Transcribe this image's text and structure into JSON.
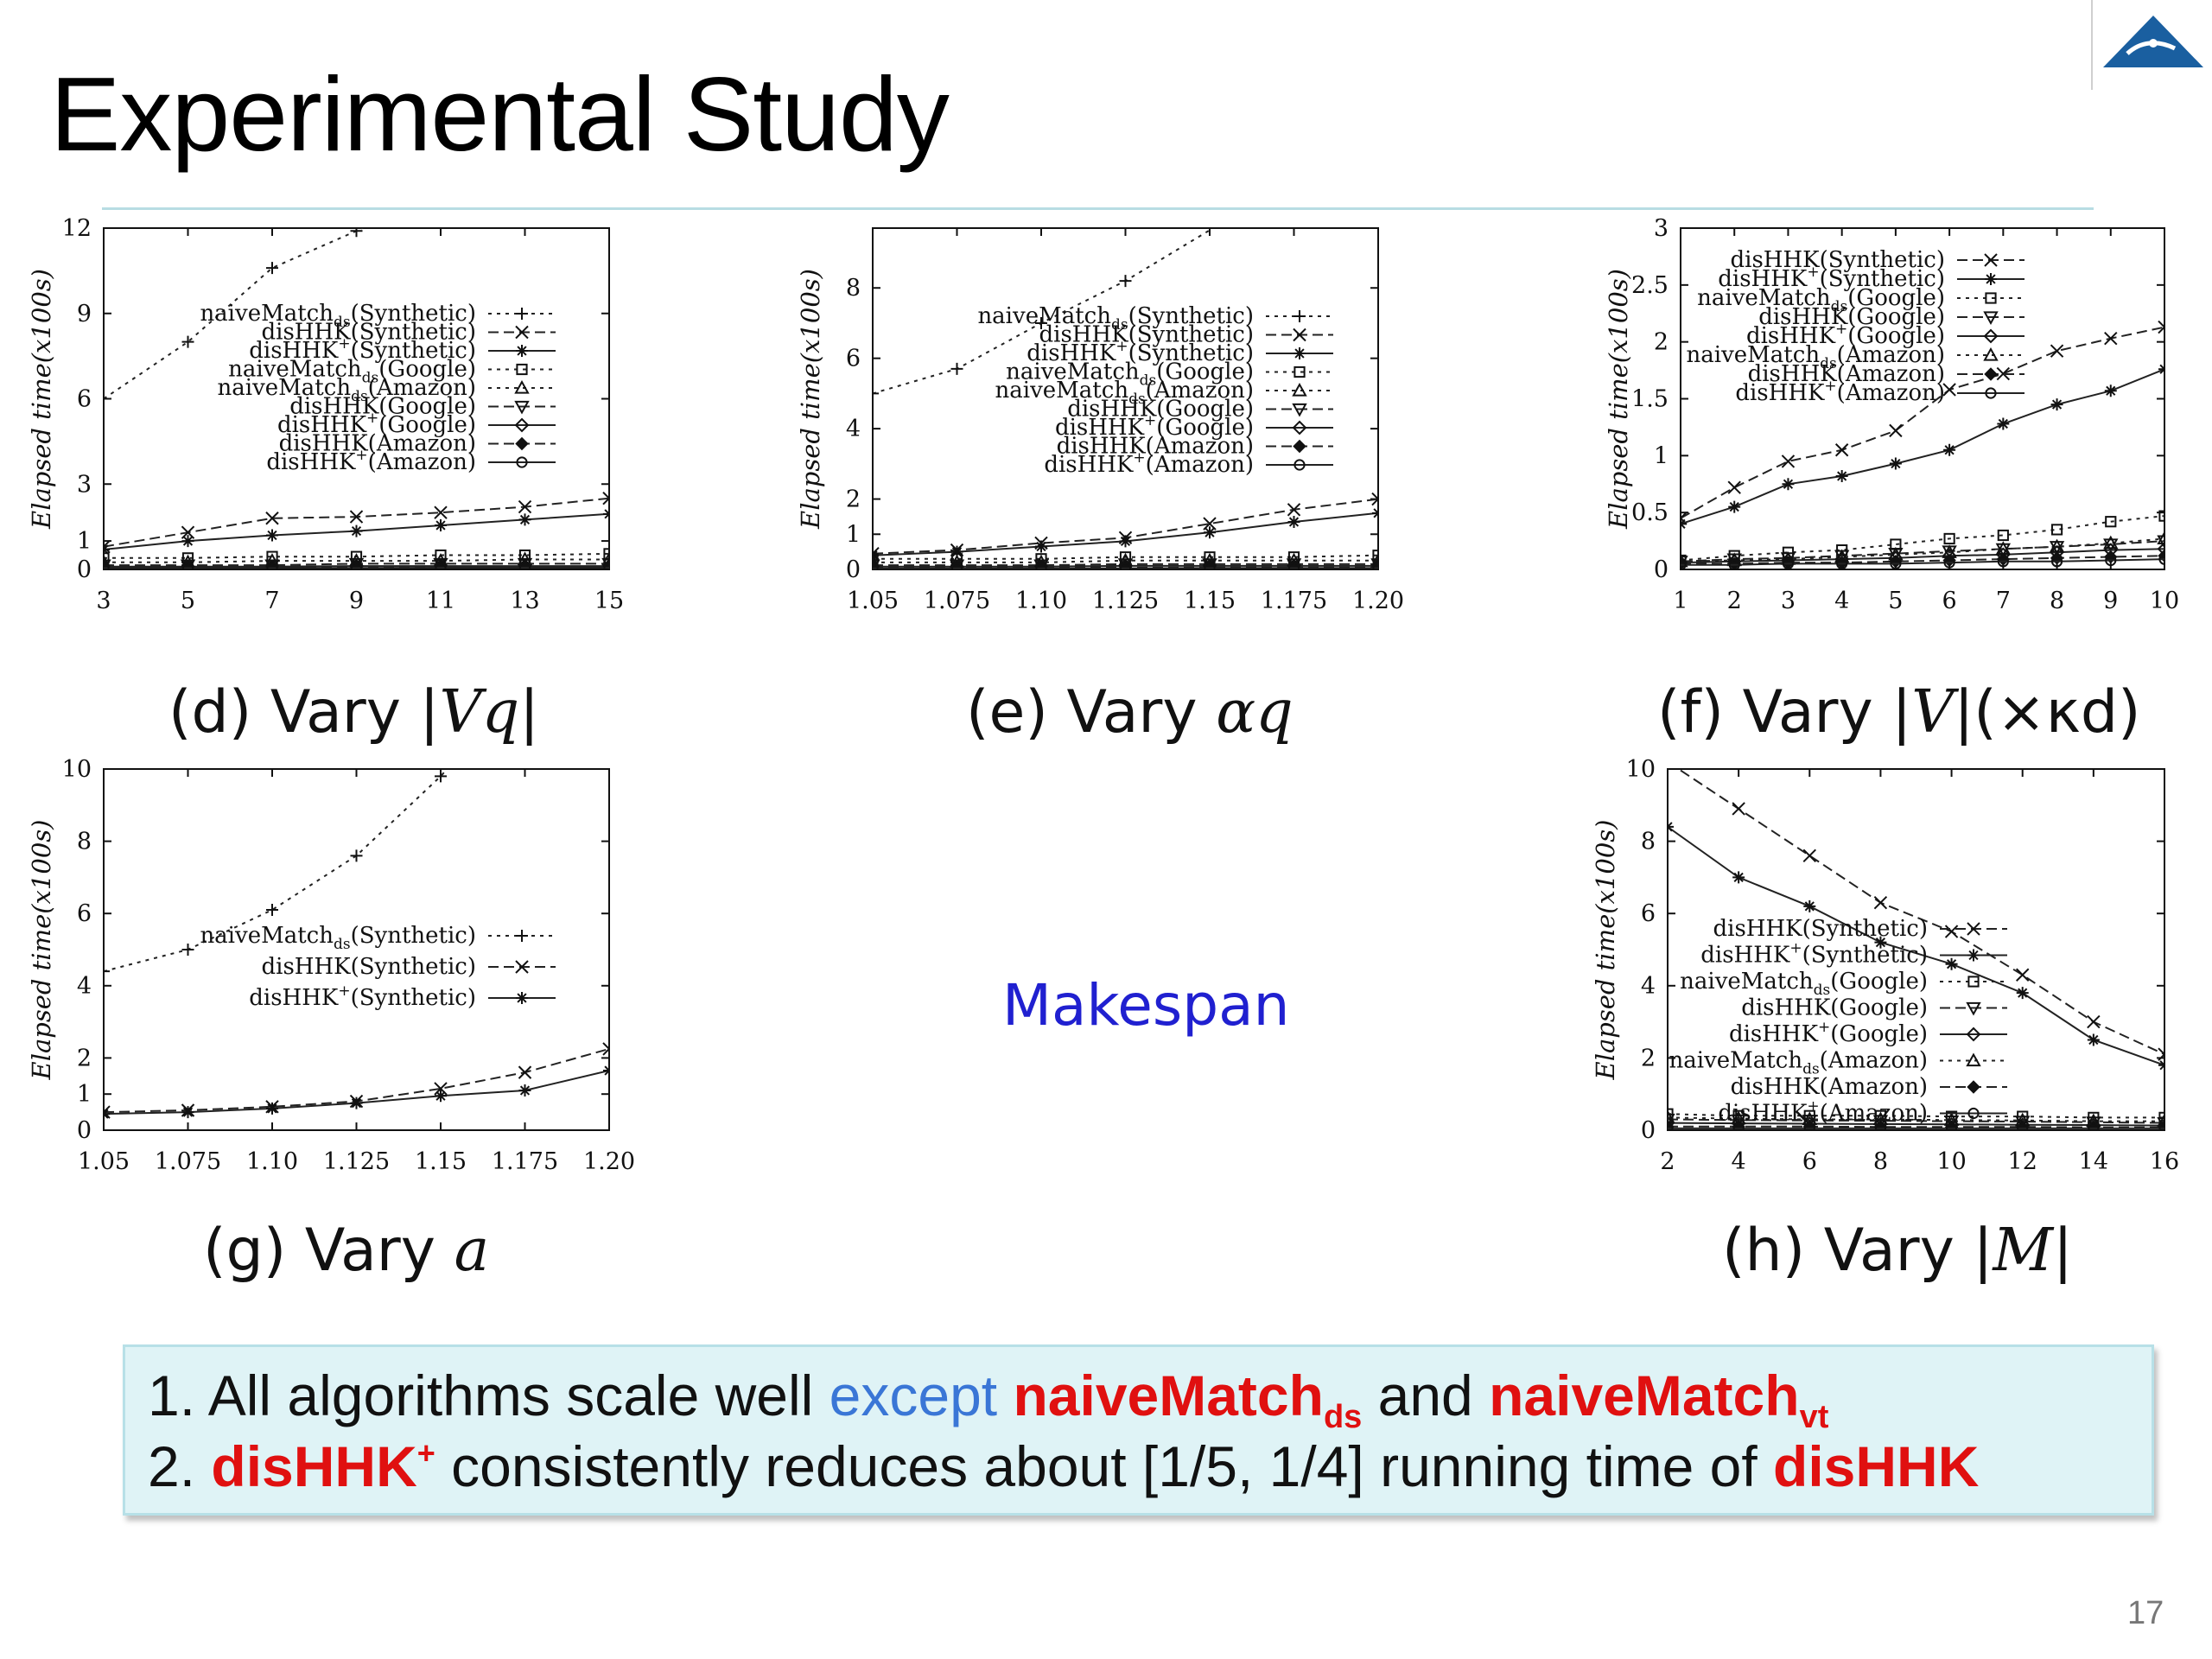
{
  "slide": {
    "title": "Experimental Study",
    "page_number": "17",
    "center_label": "Makespan"
  },
  "captions": {
    "d": {
      "prefix": "(d) Vary |",
      "math": "Vq",
      "suffix": "|"
    },
    "e": {
      "prefix": "(e) Vary ",
      "math": "αq",
      "suffix": ""
    },
    "f": {
      "prefix": "(f) Vary |",
      "math": "V",
      "suffix": "|(×κd)"
    },
    "g": {
      "prefix": "(g) Vary ",
      "math": "a",
      "suffix": ""
    },
    "h": {
      "prefix": "(h) Vary |",
      "math": "M",
      "suffix": "|"
    }
  },
  "summary": {
    "line1": {
      "num": "1. All algorithms scale well ",
      "except": "except",
      "name1": "naiveMatch",
      "sub1": "ds",
      "and": " and ",
      "name2": "naiveMatch",
      "sub2": "vt"
    },
    "line2": {
      "num": "2. ",
      "name1": "disHHK",
      "sup1": "+",
      "middle": " consistently reduces about [1/5, 1/4] running time of ",
      "name2": "disHHK"
    }
  },
  "chart_data": [
    {
      "id": "d",
      "type": "line",
      "xlabel": "",
      "ylabel": "Elapsed time(x100s)",
      "x": [
        3,
        5,
        7,
        9,
        11,
        13,
        15
      ],
      "xticks": [
        "3",
        "5",
        "7",
        "9",
        "11",
        "13",
        "15"
      ],
      "yticks": [
        0,
        1,
        3,
        6,
        9,
        12
      ],
      "ylim": [
        0,
        12
      ],
      "legend_position": "top-right",
      "series": [
        {
          "name": "naiveMatchds(Synthetic)",
          "base": "naiveMatch",
          "sub": "ds",
          "sup": "",
          "tail": "(Synthetic)",
          "style": "dotted",
          "marker": "plus",
          "values": [
            6.0,
            8.0,
            10.6,
            11.9,
            null,
            null,
            null
          ]
        },
        {
          "name": "disHHK(Synthetic)",
          "base": "disHHK",
          "sub": "",
          "sup": "",
          "tail": "(Synthetic)",
          "style": "dashed",
          "marker": "x",
          "values": [
            0.8,
            1.3,
            1.8,
            1.85,
            2.0,
            2.2,
            2.5
          ]
        },
        {
          "name": "disHHK+(Synthetic)",
          "base": "disHHK",
          "sub": "",
          "sup": "+",
          "tail": "(Synthetic)",
          "style": "solid",
          "marker": "asterisk",
          "values": [
            0.7,
            1.0,
            1.2,
            1.35,
            1.55,
            1.75,
            1.95
          ]
        },
        {
          "name": "naiveMatchds(Google)",
          "base": "naiveMatch",
          "sub": "ds",
          "sup": "",
          "tail": "(Google)",
          "style": "dotted",
          "marker": "square",
          "values": [
            0.4,
            0.4,
            0.45,
            0.45,
            0.5,
            0.5,
            0.55
          ]
        },
        {
          "name": "naiveMatchds(Amazon)",
          "base": "naiveMatch",
          "sub": "ds",
          "sup": "",
          "tail": "(Amazon)",
          "style": "dotted",
          "marker": "triangle",
          "values": [
            0.25,
            0.25,
            0.3,
            0.3,
            0.3,
            0.35,
            0.35
          ]
        },
        {
          "name": "disHHK(Google)",
          "base": "disHHK",
          "sub": "",
          "sup": "",
          "tail": "(Google)",
          "style": "dashed",
          "marker": "triangle-down",
          "values": [
            0.15,
            0.15,
            0.15,
            0.2,
            0.2,
            0.2,
            0.2
          ]
        },
        {
          "name": "disHHK+(Google)",
          "base": "disHHK",
          "sub": "",
          "sup": "+",
          "tail": "(Google)",
          "style": "solid",
          "marker": "diamond",
          "values": [
            0.1,
            0.1,
            0.1,
            0.12,
            0.12,
            0.12,
            0.12
          ]
        },
        {
          "name": "disHHK(Amazon)",
          "base": "disHHK",
          "sub": "",
          "sup": "",
          "tail": "(Amazon)",
          "style": "dashed",
          "marker": "filled-diamond",
          "values": [
            0.08,
            0.08,
            0.08,
            0.08,
            0.1,
            0.1,
            0.1
          ]
        },
        {
          "name": "disHHK+(Amazon)",
          "base": "disHHK",
          "sub": "",
          "sup": "+",
          "tail": "(Amazon)",
          "style": "solid",
          "marker": "circle",
          "values": [
            0.05,
            0.05,
            0.05,
            0.05,
            0.06,
            0.06,
            0.06
          ]
        }
      ]
    },
    {
      "id": "e",
      "type": "line",
      "xlabel": "",
      "ylabel": "Elapsed time(x100s)",
      "x": [
        1.05,
        1.075,
        1.1,
        1.125,
        1.15,
        1.175,
        1.2
      ],
      "xticks": [
        "1.05",
        "1.075",
        "1.10",
        "1.125",
        "1.15",
        "1.175",
        "1.20"
      ],
      "yticks": [
        0,
        1,
        2,
        4,
        6,
        8
      ],
      "ylim": [
        0,
        9.7
      ],
      "legend_position": "top-right",
      "series": [
        {
          "name": "naiveMatchds(Synthetic)",
          "base": "naiveMatch",
          "sub": "ds",
          "sup": "",
          "tail": "(Synthetic)",
          "style": "dotted",
          "marker": "plus",
          "values": [
            5.0,
            5.7,
            7.0,
            8.2,
            null,
            null,
            null
          ]
        },
        {
          "name": "disHHK(Synthetic)",
          "base": "disHHK",
          "sub": "",
          "sup": "",
          "tail": "(Synthetic)",
          "style": "dashed",
          "marker": "x",
          "values": [
            0.45,
            0.55,
            0.75,
            0.9,
            1.3,
            1.7,
            2.0
          ]
        },
        {
          "name": "disHHK+(Synthetic)",
          "base": "disHHK",
          "sub": "",
          "sup": "+",
          "tail": "(Synthetic)",
          "style": "solid",
          "marker": "asterisk",
          "values": [
            0.4,
            0.5,
            0.65,
            0.8,
            1.05,
            1.35,
            1.6
          ]
        },
        {
          "name": "naiveMatchds(Google)",
          "base": "naiveMatch",
          "sub": "ds",
          "sup": "",
          "tail": "(Google)",
          "style": "dotted",
          "marker": "square",
          "values": [
            0.3,
            0.3,
            0.3,
            0.35,
            0.35,
            0.35,
            0.4
          ]
        },
        {
          "name": "naiveMatchds(Amazon)",
          "base": "naiveMatch",
          "sub": "ds",
          "sup": "",
          "tail": "(Amazon)",
          "style": "dotted",
          "marker": "triangle",
          "values": [
            0.2,
            0.2,
            0.2,
            0.25,
            0.25,
            0.25,
            0.25
          ]
        },
        {
          "name": "disHHK(Google)",
          "base": "disHHK",
          "sub": "",
          "sup": "",
          "tail": "(Google)",
          "style": "dashed",
          "marker": "triangle-down",
          "values": [
            0.12,
            0.12,
            0.12,
            0.15,
            0.15,
            0.15,
            0.15
          ]
        },
        {
          "name": "disHHK+(Google)",
          "base": "disHHK",
          "sub": "",
          "sup": "+",
          "tail": "(Google)",
          "style": "solid",
          "marker": "diamond",
          "values": [
            0.08,
            0.08,
            0.08,
            0.1,
            0.1,
            0.1,
            0.1
          ]
        },
        {
          "name": "disHHK(Amazon)",
          "base": "disHHK",
          "sub": "",
          "sup": "",
          "tail": "(Amazon)",
          "style": "dashed",
          "marker": "filled-diamond",
          "values": [
            0.05,
            0.05,
            0.05,
            0.05,
            0.06,
            0.06,
            0.06
          ]
        },
        {
          "name": "disHHK+(Amazon)",
          "base": "disHHK",
          "sub": "",
          "sup": "+",
          "tail": "(Amazon)",
          "style": "solid",
          "marker": "circle",
          "values": [
            0.03,
            0.03,
            0.03,
            0.03,
            0.04,
            0.04,
            0.04
          ]
        }
      ]
    },
    {
      "id": "f",
      "type": "line",
      "xlabel": "",
      "ylabel": "Elapsed time(x100s)",
      "x": [
        1,
        2,
        3,
        4,
        5,
        6,
        7,
        8,
        9,
        10
      ],
      "xticks": [
        "1",
        "2",
        "3",
        "4",
        "5",
        "6",
        "7",
        "8",
        "9",
        "10"
      ],
      "yticks": [
        0,
        0.5,
        1,
        1.5,
        2,
        2.5,
        3
      ],
      "ytick_labels": [
        "0",
        "0.5",
        "1",
        "1.5",
        "2",
        "2.5",
        "3"
      ],
      "ylim": [
        0,
        3
      ],
      "legend_position": "top-left",
      "series": [
        {
          "name": "disHHK(Synthetic)",
          "base": "disHHK",
          "sub": "",
          "sup": "",
          "tail": "(Synthetic)",
          "style": "dashed",
          "marker": "x",
          "values": [
            0.45,
            0.72,
            0.95,
            1.05,
            1.22,
            1.58,
            1.72,
            1.92,
            2.03,
            2.13
          ]
        },
        {
          "name": "disHHK+(Synthetic)",
          "base": "disHHK",
          "sub": "",
          "sup": "+",
          "tail": "(Synthetic)",
          "style": "solid",
          "marker": "asterisk",
          "values": [
            0.4,
            0.55,
            0.75,
            0.82,
            0.93,
            1.05,
            1.28,
            1.45,
            1.57,
            1.76
          ]
        },
        {
          "name": "naiveMatchds(Google)",
          "base": "naiveMatch",
          "sub": "ds",
          "sup": "",
          "tail": "(Google)",
          "style": "dotted",
          "marker": "square",
          "values": [
            0.08,
            0.12,
            0.15,
            0.17,
            0.22,
            0.27,
            0.3,
            0.35,
            0.42,
            0.47
          ]
        },
        {
          "name": "disHHK(Google)",
          "base": "disHHK",
          "sub": "",
          "sup": "",
          "tail": "(Google)",
          "style": "dashed",
          "marker": "triangle-down",
          "values": [
            0.07,
            0.09,
            0.1,
            0.12,
            0.14,
            0.16,
            0.18,
            0.2,
            0.22,
            0.25
          ]
        },
        {
          "name": "disHHK+(Google)",
          "base": "disHHK",
          "sub": "",
          "sup": "+",
          "tail": "(Google)",
          "style": "solid",
          "marker": "diamond",
          "values": [
            0.06,
            0.07,
            0.08,
            0.09,
            0.1,
            0.12,
            0.13,
            0.15,
            0.17,
            0.18
          ]
        },
        {
          "name": "naiveMatchds(Amazon)",
          "base": "naiveMatch",
          "sub": "ds",
          "sup": "",
          "tail": "(Amazon)",
          "style": "dotted",
          "marker": "triangle",
          "values": [
            0.07,
            0.08,
            0.09,
            0.11,
            0.13,
            0.15,
            0.18,
            0.2,
            0.23,
            0.27
          ]
        },
        {
          "name": "disHHK(Amazon)",
          "base": "disHHK",
          "sub": "",
          "sup": "",
          "tail": "(Amazon)",
          "style": "dashed",
          "marker": "filled-diamond",
          "values": [
            0.05,
            0.05,
            0.06,
            0.06,
            0.07,
            0.08,
            0.09,
            0.1,
            0.11,
            0.12
          ]
        },
        {
          "name": "disHHK+(Amazon)",
          "base": "disHHK",
          "sub": "",
          "sup": "+",
          "tail": "(Amazon)",
          "style": "solid",
          "marker": "circle",
          "values": [
            0.04,
            0.04,
            0.05,
            0.05,
            0.05,
            0.06,
            0.07,
            0.07,
            0.08,
            0.09
          ]
        }
      ]
    },
    {
      "id": "g",
      "type": "line",
      "xlabel": "",
      "ylabel": "Elapsed time(x100s)",
      "x": [
        1.05,
        1.075,
        1.1,
        1.125,
        1.15,
        1.175,
        1.2
      ],
      "xticks": [
        "1.05",
        "1.075",
        "1.10",
        "1.125",
        "1.15",
        "1.175",
        "1.20"
      ],
      "yticks": [
        0,
        1,
        2,
        4,
        6,
        8,
        10
      ],
      "ylim": [
        0,
        10
      ],
      "legend_position": "center-right",
      "series": [
        {
          "name": "naiveMatchds(Synthetic)",
          "base": "naiveMatch",
          "sub": "ds",
          "sup": "",
          "tail": "(Synthetic)",
          "style": "dotted",
          "marker": "plus",
          "values": [
            4.4,
            5.0,
            6.1,
            7.6,
            9.8,
            null,
            null
          ]
        },
        {
          "name": "disHHK(Synthetic)",
          "base": "disHHK",
          "sub": "",
          "sup": "",
          "tail": "(Synthetic)",
          "style": "dashed",
          "marker": "x",
          "values": [
            0.5,
            0.55,
            0.65,
            0.8,
            1.15,
            1.6,
            2.25
          ]
        },
        {
          "name": "disHHK+(Synthetic)",
          "base": "disHHK",
          "sub": "",
          "sup": "+",
          "tail": "(Synthetic)",
          "style": "solid",
          "marker": "asterisk",
          "values": [
            0.45,
            0.5,
            0.6,
            0.75,
            0.95,
            1.1,
            1.65
          ]
        }
      ]
    },
    {
      "id": "h",
      "type": "line",
      "xlabel": "",
      "ylabel": "Elapsed time(x100s)",
      "x": [
        2,
        4,
        6,
        8,
        10,
        12,
        14,
        16
      ],
      "xticks": [
        "2",
        "4",
        "6",
        "8",
        "10",
        "12",
        "14",
        "16"
      ],
      "yticks": [
        0,
        2,
        4,
        6,
        8,
        10
      ],
      "ylim": [
        0,
        10
      ],
      "legend_position": "center-right",
      "series": [
        {
          "name": "disHHK(Synthetic)",
          "base": "disHHK",
          "sub": "",
          "sup": "",
          "tail": "(Synthetic)",
          "style": "dashed",
          "marker": "x",
          "values": [
            10.2,
            8.9,
            7.6,
            6.3,
            5.5,
            4.3,
            3.0,
            2.1
          ]
        },
        {
          "name": "disHHK+(Synthetic)",
          "base": "disHHK",
          "sub": "",
          "sup": "+",
          "tail": "(Synthetic)",
          "style": "solid",
          "marker": "asterisk",
          "values": [
            8.4,
            7.0,
            6.2,
            5.2,
            4.6,
            3.8,
            2.5,
            1.8
          ]
        },
        {
          "name": "naiveMatchds(Google)",
          "base": "naiveMatch",
          "sub": "ds",
          "sup": "",
          "tail": "(Google)",
          "style": "dotted",
          "marker": "square",
          "values": [
            0.45,
            0.4,
            0.4,
            0.4,
            0.38,
            0.38,
            0.35,
            0.35
          ]
        },
        {
          "name": "disHHK(Google)",
          "base": "disHHK",
          "sub": "",
          "sup": "",
          "tail": "(Google)",
          "style": "dashed",
          "marker": "triangle-down",
          "values": [
            0.3,
            0.28,
            0.27,
            0.26,
            0.25,
            0.24,
            0.22,
            0.2
          ]
        },
        {
          "name": "disHHK+(Google)",
          "base": "disHHK",
          "sub": "",
          "sup": "+",
          "tail": "(Google)",
          "style": "solid",
          "marker": "diamond",
          "values": [
            0.2,
            0.19,
            0.18,
            0.17,
            0.16,
            0.15,
            0.14,
            0.13
          ]
        },
        {
          "name": "naiveMatchds(Amazon)",
          "base": "naiveMatch",
          "sub": "ds",
          "sup": "",
          "tail": "(Amazon)",
          "style": "dotted",
          "marker": "triangle",
          "values": [
            0.35,
            0.32,
            0.3,
            0.3,
            0.28,
            0.27,
            0.25,
            0.25
          ]
        },
        {
          "name": "disHHK(Amazon)",
          "base": "disHHK",
          "sub": "",
          "sup": "",
          "tail": "(Amazon)",
          "style": "dashed",
          "marker": "filled-diamond",
          "values": [
            0.1,
            0.1,
            0.1,
            0.09,
            0.09,
            0.09,
            0.08,
            0.08
          ]
        },
        {
          "name": "disHHK+(Amazon)",
          "base": "disHHK",
          "sub": "",
          "sup": "+",
          "tail": "(Amazon)",
          "style": "solid",
          "marker": "circle",
          "values": [
            0.05,
            0.05,
            0.05,
            0.05,
            0.05,
            0.05,
            0.05,
            0.05
          ]
        }
      ]
    }
  ]
}
